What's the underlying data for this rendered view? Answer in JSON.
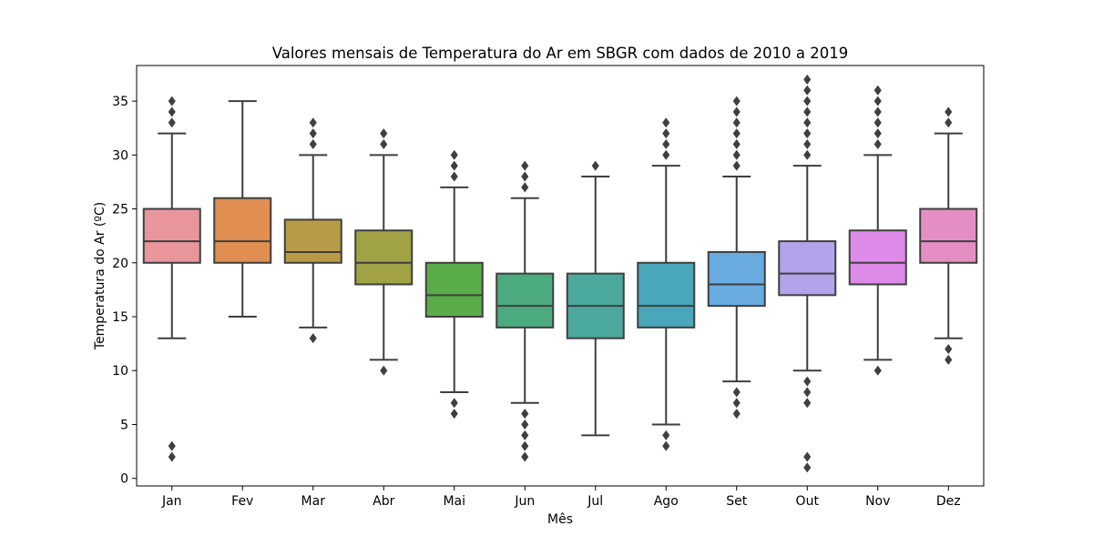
{
  "chart_data": {
    "type": "box",
    "title": "Valores mensais de Temperatura do Ar em SBGR com dados de 2010 a 2019",
    "xlabel": "Mês",
    "ylabel": "Temperatura do Ar (ºC)",
    "ylim": [
      -0.7,
      38.3
    ],
    "y_ticks": [
      0,
      5,
      10,
      15,
      20,
      25,
      30,
      35
    ],
    "grid": false,
    "categories": [
      "Jan",
      "Fev",
      "Mar",
      "Abr",
      "Mai",
      "Jun",
      "Jul",
      "Ago",
      "Set",
      "Out",
      "Nov",
      "Dez"
    ],
    "boxes": [
      {
        "label": "Jan",
        "whisker_low": 13,
        "q1": 20,
        "median": 22,
        "q3": 25,
        "whisker_high": 32,
        "outliers": [
          2,
          3,
          33,
          34,
          35
        ],
        "color": "#e8969c"
      },
      {
        "label": "Fev",
        "whisker_low": 15,
        "q1": 20,
        "median": 22,
        "q3": 26,
        "whisker_high": 35,
        "outliers": [],
        "color": "#e08e51"
      },
      {
        "label": "Mar",
        "whisker_low": 14,
        "q1": 20,
        "median": 21,
        "q3": 24,
        "whisker_high": 30,
        "outliers": [
          13,
          31,
          32,
          33
        ],
        "color": "#b89b48"
      },
      {
        "label": "Abr",
        "whisker_low": 11,
        "q1": 18,
        "median": 20,
        "q3": 23,
        "whisker_high": 30,
        "outliers": [
          10,
          31,
          32
        ],
        "color": "#a1a146"
      },
      {
        "label": "Mai",
        "whisker_low": 8,
        "q1": 15,
        "median": 17,
        "q3": 20,
        "whisker_high": 27,
        "outliers": [
          6,
          7,
          28,
          29,
          30
        ],
        "color": "#5aac48"
      },
      {
        "label": "Jun",
        "whisker_low": 7,
        "q1": 14,
        "median": 16,
        "q3": 19,
        "whisker_high": 26,
        "outliers": [
          2,
          3,
          4,
          5,
          6,
          27,
          28,
          29
        ],
        "color": "#4cab7e"
      },
      {
        "label": "Jul",
        "whisker_low": 4,
        "q1": 13,
        "median": 16,
        "q3": 19,
        "whisker_high": 28,
        "outliers": [
          29
        ],
        "color": "#4aa99c"
      },
      {
        "label": "Ago",
        "whisker_low": 5,
        "q1": 14,
        "median": 16,
        "q3": 20,
        "whisker_high": 29,
        "outliers": [
          3,
          4,
          30,
          31,
          32,
          33
        ],
        "color": "#4aa6b9"
      },
      {
        "label": "Set",
        "whisker_low": 9,
        "q1": 16,
        "median": 18,
        "q3": 21,
        "whisker_high": 28,
        "outliers": [
          6,
          7,
          8,
          29,
          30,
          31,
          32,
          33,
          34,
          35
        ],
        "color": "#67abe0"
      },
      {
        "label": "Out",
        "whisker_low": 10,
        "q1": 17,
        "median": 19,
        "q3": 22,
        "whisker_high": 29,
        "outliers": [
          1,
          2,
          7,
          8,
          9,
          30,
          31,
          32,
          33,
          34,
          35,
          36,
          37
        ],
        "color": "#b2a3ec"
      },
      {
        "label": "Nov",
        "whisker_low": 11,
        "q1": 18,
        "median": 20,
        "q3": 23,
        "whisker_high": 30,
        "outliers": [
          10,
          31,
          32,
          33,
          34,
          35,
          36
        ],
        "color": "#de8ae8"
      },
      {
        "label": "Dez",
        "whisker_low": 13,
        "q1": 20,
        "median": 22,
        "q3": 25,
        "whisker_high": 32,
        "outliers": [
          11,
          12,
          33,
          34
        ],
        "color": "#e58ec4"
      }
    ],
    "line_color": "#3f3f3f"
  }
}
